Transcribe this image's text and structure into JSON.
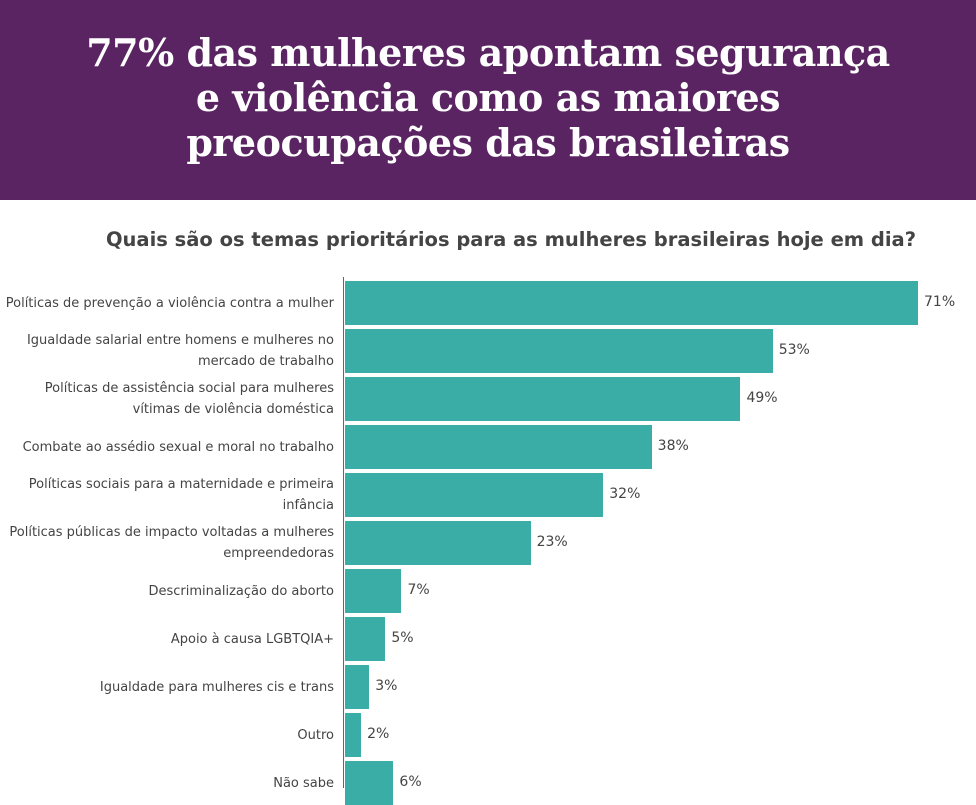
{
  "header": {
    "title": "77% das mulheres apontam segurança\ne violência como as maiores\npreocupações das brasileiras"
  },
  "chart_data": {
    "type": "bar",
    "orientation": "horizontal",
    "title": "Quais são os temas prioritários para as mulheres brasileiras hoje em dia?",
    "categories": [
      "Políticas de prevenção a violência contra a mulher",
      "Igualdade salarial entre homens e mulheres no mercado de trabalho",
      "Políticas de assistência social para mulheres vítimas de violência doméstica",
      "Combate ao assédio sexual e moral no trabalho",
      "Políticas sociais para a maternidade e primeira infância",
      "Políticas públicas de impacto voltadas a mulheres empreendedoras",
      "Descriminalização do aborto",
      "Apoio à causa LGBTQIA+",
      "Igualdade para mulheres cis e trans",
      "Outro",
      "Não sabe"
    ],
    "values": [
      71,
      53,
      49,
      38,
      32,
      23,
      7,
      5,
      3,
      2,
      6
    ],
    "value_labels": [
      "71%",
      "53%",
      "49%",
      "38%",
      "32%",
      "23%",
      "7%",
      "5%",
      "3%",
      "2%",
      "6%"
    ],
    "xlim": [
      0,
      71
    ],
    "bar_color": "#3aada7",
    "header_color": "#5a2462"
  }
}
